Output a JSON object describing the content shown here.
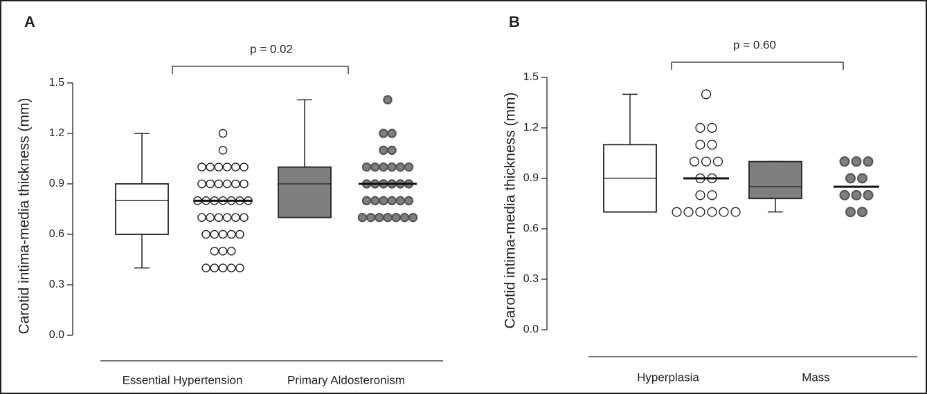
{
  "chart_data": [
    {
      "type": "box",
      "panel_label": "A",
      "annotation": "p = 0.02",
      "y_label": "Carotid intima-media thickness (mm)",
      "ylim": [
        0,
        1.5
      ],
      "yticks": [
        {
          "value": 0,
          "label": "0.0"
        },
        0.3,
        0.6,
        0.9,
        1.2,
        1.5
      ],
      "groups": [
        {
          "name": "Essential Hypertension",
          "color": "#ffffff",
          "box": {
            "whisker_low": 0.4,
            "q1": 0.6,
            "median": 0.8,
            "q3": 0.9,
            "whisker_high": 1.2
          },
          "dots": [
            1.2,
            1.1,
            1.0,
            1.0,
            1.0,
            1.0,
            1.0,
            1.0,
            0.9,
            0.9,
            0.9,
            0.9,
            0.9,
            0.9,
            0.8,
            0.8,
            0.8,
            0.8,
            0.8,
            0.8,
            0.8,
            0.7,
            0.7,
            0.7,
            0.7,
            0.7,
            0.7,
            0.6,
            0.6,
            0.6,
            0.6,
            0.6,
            0.5,
            0.5,
            0.5,
            0.4,
            0.4,
            0.4,
            0.4,
            0.4
          ],
          "dot_median": 0.8
        },
        {
          "name": "Primary Aldosteronism",
          "color": "#7f7f7f",
          "box": {
            "whisker_low": 0.7,
            "q1": 0.7,
            "median": 0.9,
            "q3": 1.0,
            "whisker_high": 1.4
          },
          "dots": [
            1.4,
            1.2,
            1.2,
            1.1,
            1.1,
            1.0,
            1.0,
            1.0,
            1.0,
            1.0,
            1.0,
            0.9,
            0.9,
            0.9,
            0.9,
            0.9,
            0.9,
            0.8,
            0.8,
            0.8,
            0.8,
            0.8,
            0.8,
            0.7,
            0.7,
            0.7,
            0.7,
            0.7,
            0.7,
            0.7
          ],
          "dot_median": 0.9
        }
      ]
    },
    {
      "type": "box",
      "panel_label": "B",
      "annotation": "p = 0.60",
      "y_label": "Carotid intima-media thickness (mm)",
      "ylim": [
        0,
        1.5
      ],
      "yticks": [
        {
          "value": 0,
          "label": "0.0"
        },
        0.3,
        0.6,
        0.9,
        1.2,
        1.5
      ],
      "groups": [
        {
          "name": "Hyperplasia",
          "color": "#ffffff",
          "box": {
            "whisker_low": 0.7,
            "q1": 0.7,
            "median": 0.9,
            "q3": 1.1,
            "whisker_high": 1.4
          },
          "dots": [
            1.4,
            1.2,
            1.2,
            1.1,
            1.1,
            1.0,
            1.0,
            1.0,
            0.9,
            0.9,
            0.8,
            0.8,
            0.7,
            0.7,
            0.7,
            0.7,
            0.7,
            0.7
          ],
          "dot_median": 0.9
        },
        {
          "name": "Mass",
          "color": "#7f7f7f",
          "box": {
            "whisker_low": 0.7,
            "q1": 0.78,
            "median": 0.85,
            "q3": 1.0,
            "whisker_high": 1.0
          },
          "dots": [
            1.0,
            1.0,
            1.0,
            0.9,
            0.9,
            0.8,
            0.8,
            0.8,
            0.7,
            0.7
          ],
          "dot_median": 0.85
        }
      ]
    }
  ]
}
